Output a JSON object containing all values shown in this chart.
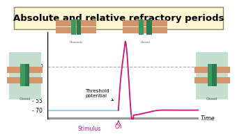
{
  "title": "Absolute and relative refractory periods",
  "title_fontsize": 9.5,
  "title_box_facecolor": "#fdf6d3",
  "title_box_edgecolor": "#888855",
  "background_color": "#ffffff",
  "plot_bg_color": "#ffffff",
  "y_ticks": [
    0,
    -55,
    -70
  ],
  "y_tick_labels": [
    "0",
    "- 55",
    "- 70"
  ],
  "ylim": [
    -85,
    55
  ],
  "xlim": [
    0,
    100
  ],
  "x_label": "Time",
  "stimulus_label": "Stimulus",
  "on_label": "On",
  "threshold_label": "Threshold\npotential",
  "resting_v": -70,
  "threshold_v": -55,
  "peak_v": 40,
  "stimulus_x": 28,
  "on_x": 47,
  "resting_color": "#87CEEB",
  "action_color": "#cc1177",
  "axis_color": "#999999",
  "dashed_line_color": "#aaaaaa",
  "left_img_bg": "#c8e8d8",
  "right_img_bg": "#c8e8d8"
}
